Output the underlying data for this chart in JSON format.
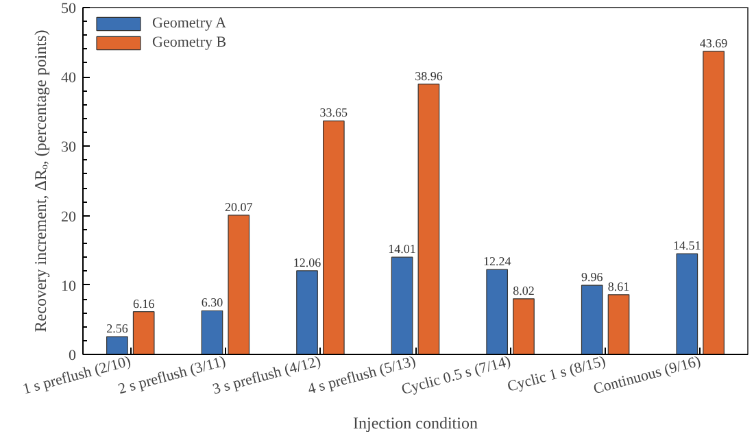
{
  "chart_data": {
    "type": "bar",
    "xlabel": "Injection condition",
    "ylabel": "Recovery increment, ΔRₒ, (percentage points)",
    "categories": [
      "1 s preflush (2/10)",
      "2 s preflush (3/11)",
      "3 s preflush (4/12)",
      "4 s preflush (5/13)",
      "Cyclic 0.5 s (7/14)",
      "Cyclic 1 s (8/15)",
      "Continuous (9/16)"
    ],
    "series": [
      {
        "name": "Geometry A",
        "color": "#3b70b3",
        "values": [
          2.56,
          6.3,
          12.06,
          14.01,
          12.24,
          9.96,
          14.51
        ],
        "value_labels": [
          "2.56",
          "6.30",
          "12.06",
          "14.01",
          "12.24",
          "9.96",
          "14.51"
        ]
      },
      {
        "name": "Geometry B",
        "color": "#e0672e",
        "values": [
          6.16,
          20.07,
          33.65,
          38.96,
          8.02,
          8.61,
          43.69
        ],
        "value_labels": [
          "6.16",
          "20.07",
          "33.65",
          "38.96",
          "8.02",
          "8.61",
          "43.69"
        ]
      }
    ],
    "ylim": [
      0,
      50
    ],
    "yticks": [
      0,
      10,
      20,
      30,
      40,
      50
    ],
    "grid": false,
    "legend": "top left"
  }
}
